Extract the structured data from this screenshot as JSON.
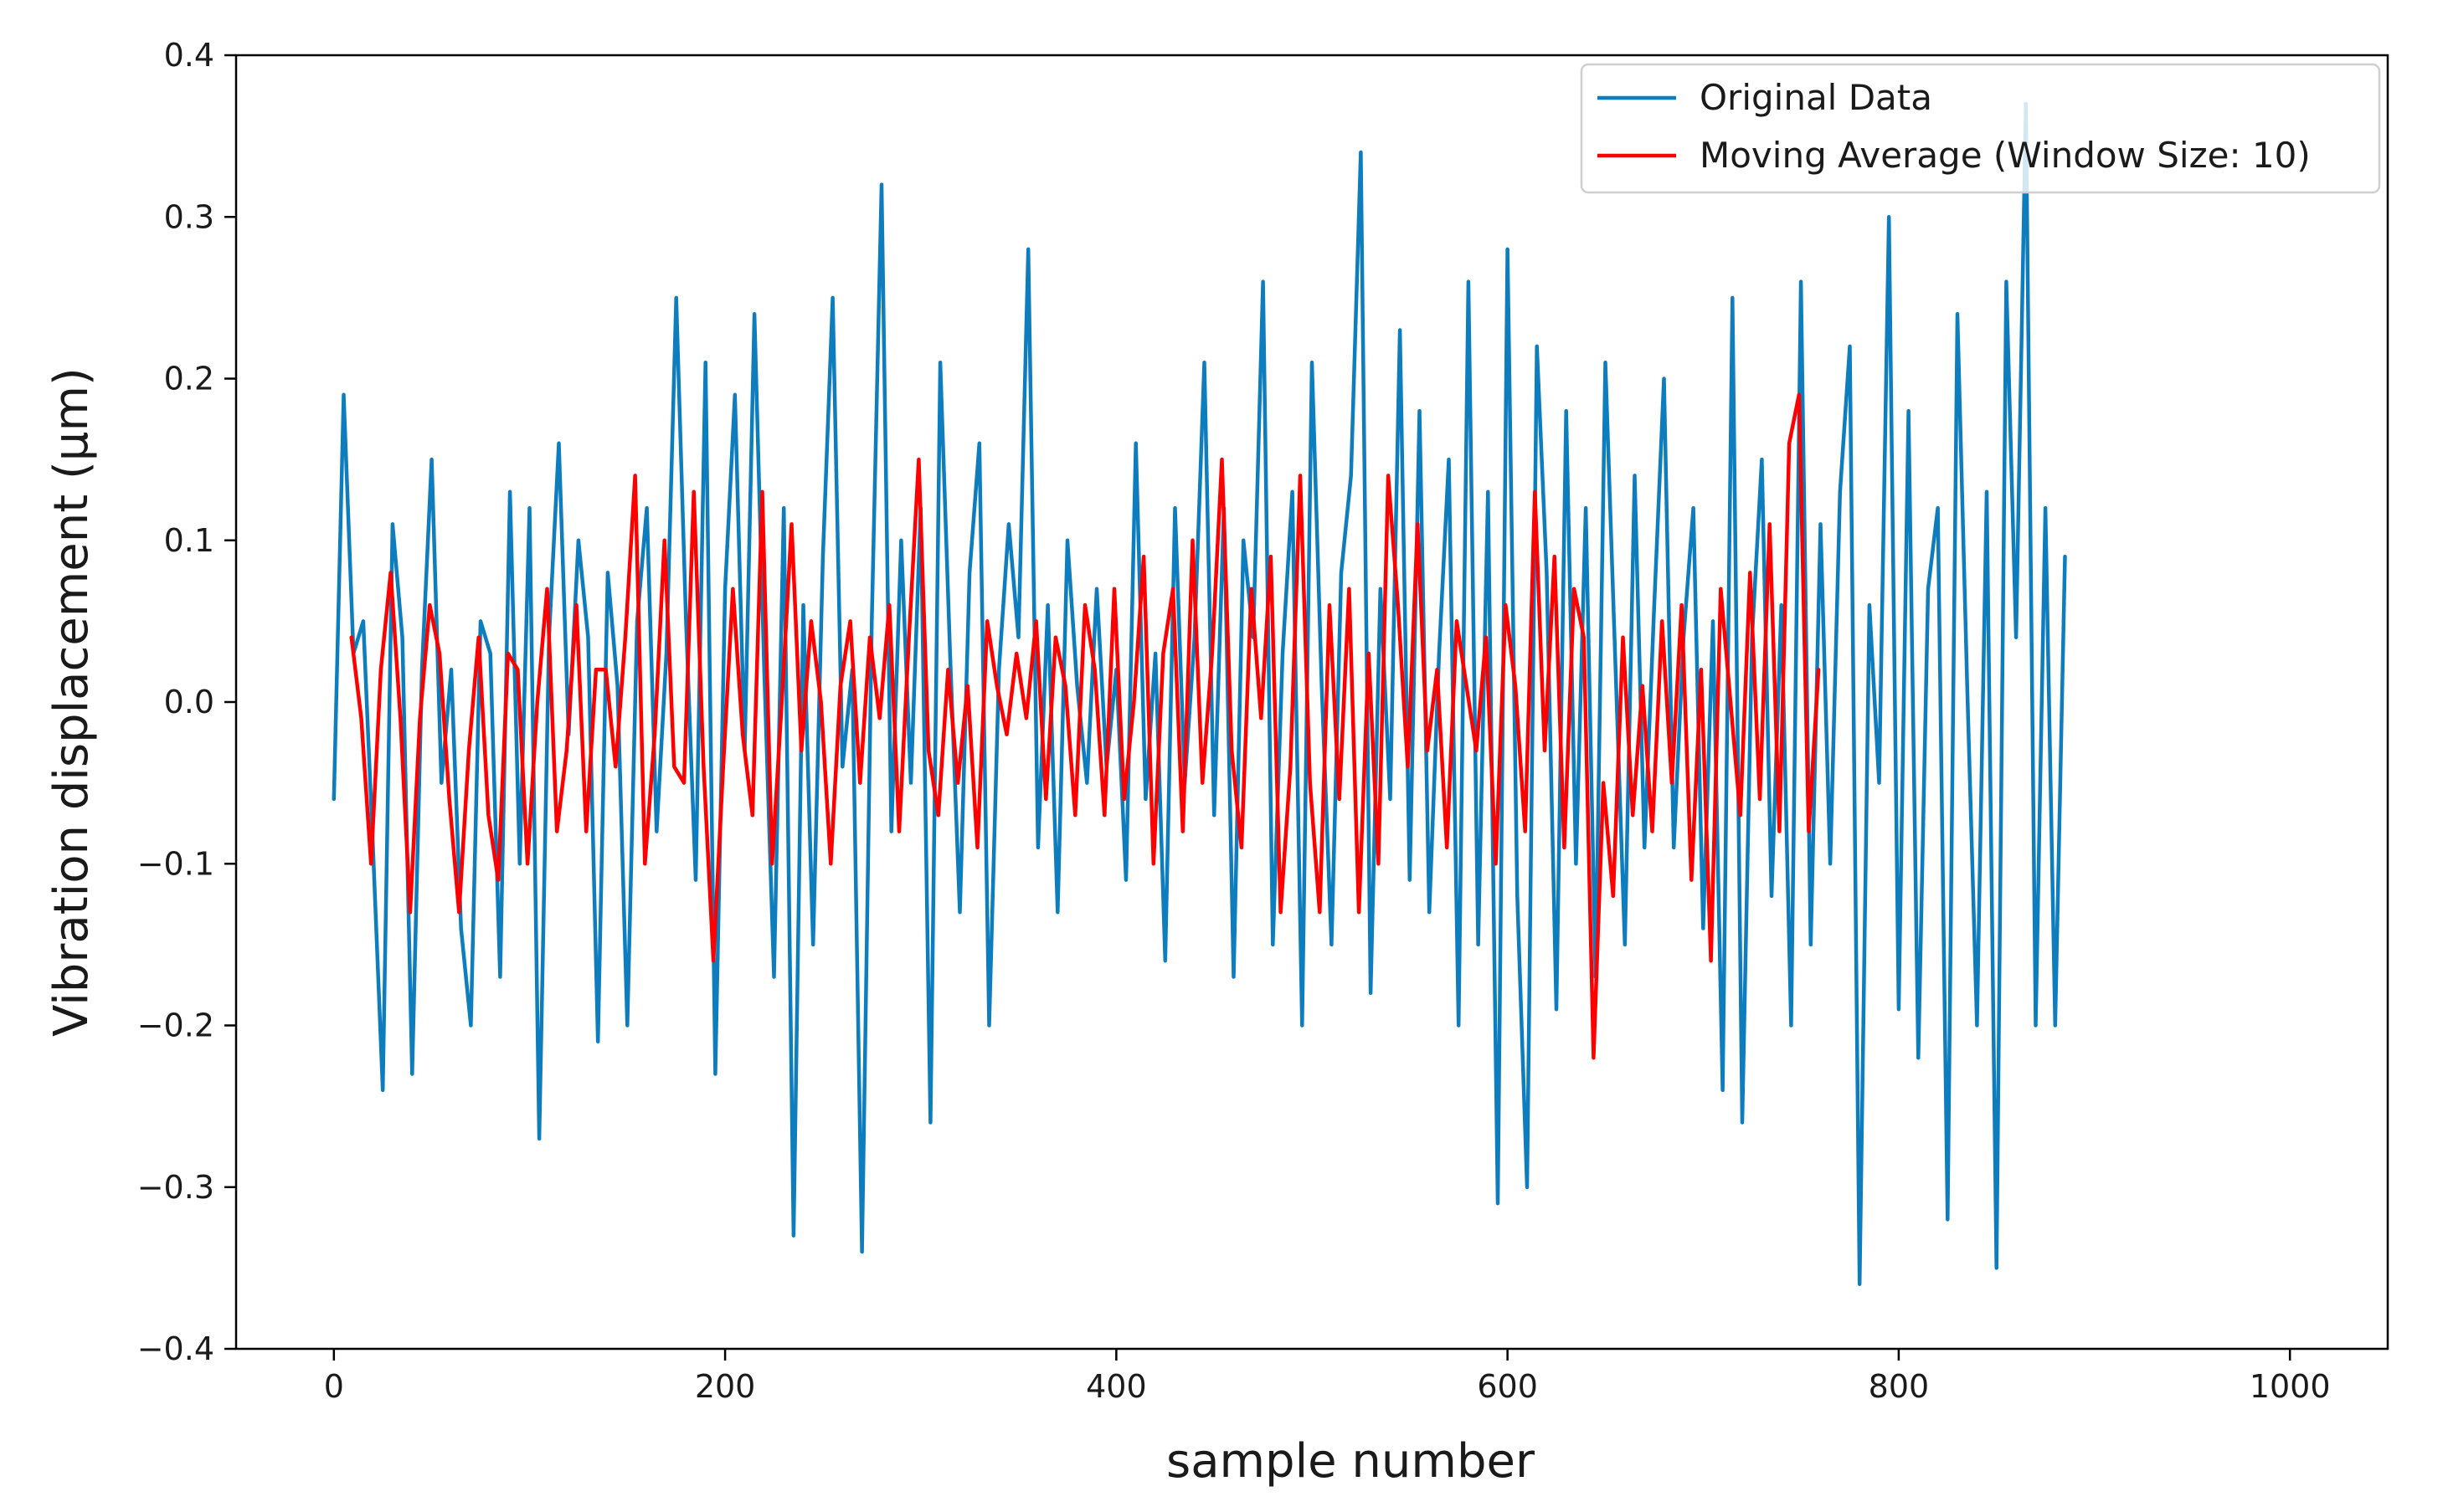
{
  "chart_data": {
    "type": "line",
    "title": "",
    "xlabel": "sample number",
    "ylabel": "Vibration displacement (μm)",
    "xlim": [
      -50,
      1050
    ],
    "ylim": [
      -0.4,
      0.4
    ],
    "x_ticks": [
      0,
      200,
      400,
      600,
      800,
      1000
    ],
    "x_tick_labels": [
      "0",
      "200",
      "400",
      "600",
      "800",
      "1000"
    ],
    "y_ticks": [
      -0.4,
      -0.3,
      -0.2,
      -0.1,
      0.0,
      0.1,
      0.2,
      0.3,
      0.4
    ],
    "y_tick_labels": [
      "−0.4",
      "−0.3",
      "−0.2",
      "−0.1",
      "0.0",
      "0.1",
      "0.2",
      "0.3",
      "0.4"
    ],
    "grid": false,
    "legend_position": "upper-right",
    "series": [
      {
        "name": "Original Data",
        "color": "#0e7dbd",
        "x_start": 0,
        "x_step": 5,
        "values": [
          -0.06,
          0.19,
          0.03,
          0.05,
          -0.09,
          -0.24,
          0.11,
          0.04,
          -0.23,
          0.02,
          0.15,
          -0.05,
          0.02,
          -0.14,
          -0.2,
          0.05,
          0.03,
          -0.17,
          0.13,
          -0.1,
          0.12,
          -0.27,
          0.04,
          0.16,
          -0.02,
          0.1,
          0.04,
          -0.21,
          0.08,
          0.01,
          -0.2,
          0.05,
          0.12,
          -0.08,
          0.03,
          0.25,
          0.05,
          -0.11,
          0.21,
          -0.23,
          0.07,
          0.19,
          -0.03,
          0.24,
          0.02,
          -0.17,
          0.12,
          -0.33,
          0.06,
          -0.15,
          0.09,
          0.25,
          -0.04,
          0.02,
          -0.34,
          0.05,
          0.32,
          -0.08,
          0.1,
          -0.05,
          0.12,
          -0.26,
          0.21,
          0.03,
          -0.13,
          0.08,
          0.16,
          -0.2,
          0.02,
          0.11,
          0.04,
          0.28,
          -0.09,
          0.06,
          -0.13,
          0.1,
          0.01,
          -0.05,
          0.07,
          -0.04,
          0.02,
          -0.11,
          0.16,
          -0.06,
          0.03,
          -0.16,
          0.12,
          -0.05,
          0.04,
          0.21,
          -0.07,
          0.12,
          -0.17,
          0.1,
          0.04,
          0.26,
          -0.15,
          0.03,
          0.13,
          -0.2,
          0.21,
          0.01,
          -0.15,
          0.08,
          0.14,
          0.34,
          -0.18,
          0.07,
          -0.06,
          0.23,
          -0.11,
          0.18,
          -0.13,
          0.03,
          0.15,
          -0.2,
          0.26,
          -0.15,
          0.13,
          -0.31,
          0.28,
          -0.12,
          -0.3,
          0.22,
          0.08,
          -0.19,
          0.18,
          -0.1,
          0.12,
          -0.17,
          0.21,
          0.03,
          -0.15,
          0.14,
          -0.09,
          0.06,
          0.2,
          -0.09,
          0.04,
          0.12,
          -0.14,
          0.05,
          -0.24,
          0.25,
          -0.26,
          0.04,
          0.15,
          -0.12,
          0.06,
          -0.2,
          0.26,
          -0.15,
          0.11,
          -0.1,
          0.13,
          0.22,
          -0.36,
          0.06,
          -0.05,
          0.3,
          -0.19,
          0.18,
          -0.22,
          0.07,
          0.12,
          -0.32,
          0.24,
          0.01,
          -0.2,
          0.13,
          -0.35,
          0.26,
          0.04,
          0.37,
          -0.2,
          0.12,
          -0.2,
          0.09
        ]
      },
      {
        "name": "Moving Average (Window Size: 10)",
        "color": "#ff0000",
        "x_start": 9,
        "x_step": 5,
        "values": [
          0.04,
          -0.01,
          -0.1,
          0.02,
          0.08,
          -0.01,
          -0.13,
          -0.01,
          0.06,
          0.03,
          -0.06,
          -0.13,
          -0.03,
          0.04,
          -0.07,
          -0.11,
          0.03,
          0.02,
          -0.1,
          0.0,
          0.07,
          -0.08,
          -0.03,
          0.06,
          -0.08,
          0.02,
          0.02,
          -0.04,
          0.04,
          0.14,
          -0.1,
          -0.02,
          0.1,
          -0.04,
          -0.05,
          0.13,
          -0.04,
          -0.16,
          -0.04,
          0.07,
          -0.02,
          -0.07,
          0.13,
          -0.1,
          0.0,
          0.11,
          -0.03,
          0.05,
          0.0,
          -0.1,
          0.01,
          0.05,
          -0.05,
          0.04,
          -0.01,
          0.06,
          -0.08,
          0.04,
          0.15,
          -0.03,
          -0.07,
          0.02,
          -0.05,
          0.01,
          -0.09,
          0.05,
          0.01,
          -0.02,
          0.03,
          -0.01,
          0.05,
          -0.06,
          0.04,
          0.01,
          -0.07,
          0.06,
          0.02,
          -0.07,
          0.07,
          -0.06,
          0.0,
          0.09,
          -0.1,
          0.03,
          0.07,
          -0.08,
          0.1,
          -0.05,
          0.03,
          0.15,
          -0.03,
          -0.09,
          0.07,
          -0.01,
          0.09,
          -0.13,
          -0.04,
          0.14,
          -0.05,
          -0.13,
          0.06,
          -0.06,
          0.07,
          -0.13,
          0.03,
          -0.1,
          0.14,
          0.06,
          -0.04,
          0.11,
          -0.03,
          0.02,
          -0.09,
          0.05,
          0.01,
          -0.03,
          0.04,
          -0.1,
          0.06,
          0.01,
          -0.08,
          0.13,
          -0.03,
          0.09,
          -0.09,
          0.07,
          0.04,
          -0.22,
          -0.05,
          -0.12,
          0.04,
          -0.07,
          0.01,
          -0.08,
          0.05,
          -0.05,
          0.06,
          -0.11,
          0.02,
          -0.16,
          0.07,
          0.0,
          -0.07,
          0.08,
          -0.06,
          0.11,
          -0.08,
          0.16,
          0.19,
          -0.08,
          0.02
        ]
      }
    ]
  }
}
